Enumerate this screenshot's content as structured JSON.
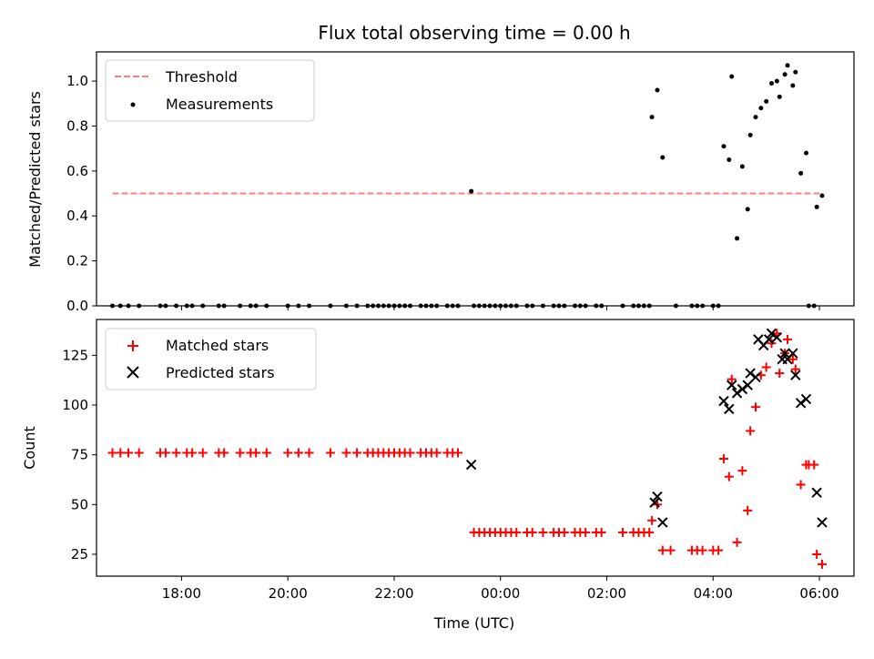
{
  "chart_data": [
    {
      "type": "scatter",
      "title": "Flux total observing time = 0.00 h",
      "xlabel": "",
      "ylabel": "Matched/Predicted stars",
      "xlim": [
        16.4,
        30.65
      ],
      "ylim": [
        0,
        1.13
      ],
      "yticks": [
        "0.0",
        "0.2",
        "0.4",
        "0.6",
        "0.8",
        "1.0"
      ],
      "threshold": {
        "name": "Threshold",
        "y": 0.5,
        "x": [
          16.7,
          30.0
        ],
        "color": "#ff7f7f"
      },
      "legend": {
        "position": "upper-left",
        "entries": [
          "Threshold",
          "Measurements"
        ]
      },
      "series": [
        {
          "name": "Measurements",
          "color": "#000000",
          "points": [
            [
              16.7,
              0
            ],
            [
              16.85,
              0
            ],
            [
              17.0,
              0
            ],
            [
              17.2,
              0
            ],
            [
              17.6,
              0
            ],
            [
              17.7,
              0
            ],
            [
              17.9,
              0
            ],
            [
              18.1,
              0
            ],
            [
              18.2,
              0
            ],
            [
              18.4,
              0
            ],
            [
              18.7,
              0
            ],
            [
              18.8,
              0
            ],
            [
              19.1,
              0
            ],
            [
              19.3,
              0
            ],
            [
              19.4,
              0
            ],
            [
              19.6,
              0
            ],
            [
              20.0,
              0
            ],
            [
              20.2,
              0
            ],
            [
              20.4,
              0
            ],
            [
              20.8,
              0
            ],
            [
              21.1,
              0
            ],
            [
              21.3,
              0
            ],
            [
              21.5,
              0
            ],
            [
              21.6,
              0
            ],
            [
              21.7,
              0
            ],
            [
              21.8,
              0
            ],
            [
              21.9,
              0
            ],
            [
              22.0,
              0
            ],
            [
              22.1,
              0
            ],
            [
              22.2,
              0
            ],
            [
              22.3,
              0
            ],
            [
              22.5,
              0
            ],
            [
              22.6,
              0
            ],
            [
              22.7,
              0
            ],
            [
              22.8,
              0
            ],
            [
              23.0,
              0
            ],
            [
              23.1,
              0
            ],
            [
              23.2,
              0
            ],
            [
              23.45,
              0.51
            ],
            [
              23.5,
              0
            ],
            [
              23.6,
              0
            ],
            [
              23.7,
              0
            ],
            [
              23.8,
              0
            ],
            [
              23.9,
              0
            ],
            [
              24.0,
              0
            ],
            [
              24.1,
              0
            ],
            [
              24.2,
              0
            ],
            [
              24.3,
              0
            ],
            [
              24.5,
              0
            ],
            [
              24.6,
              0
            ],
            [
              24.8,
              0
            ],
            [
              25.0,
              0
            ],
            [
              25.1,
              0
            ],
            [
              25.2,
              0
            ],
            [
              25.4,
              0
            ],
            [
              25.5,
              0
            ],
            [
              25.6,
              0
            ],
            [
              25.8,
              0
            ],
            [
              25.9,
              0
            ],
            [
              26.3,
              0
            ],
            [
              26.5,
              0
            ],
            [
              26.6,
              0
            ],
            [
              26.7,
              0
            ],
            [
              26.8,
              0
            ],
            [
              26.85,
              0.84
            ],
            [
              26.95,
              0.96
            ],
            [
              27.05,
              0.66
            ],
            [
              27.3,
              0
            ],
            [
              27.6,
              0
            ],
            [
              27.7,
              0
            ],
            [
              27.8,
              0
            ],
            [
              28.0,
              0
            ],
            [
              28.1,
              0
            ],
            [
              28.2,
              0.71
            ],
            [
              28.3,
              0.65
            ],
            [
              28.35,
              1.02
            ],
            [
              28.45,
              0.3
            ],
            [
              28.55,
              0.62
            ],
            [
              28.65,
              0.43
            ],
            [
              28.7,
              0.76
            ],
            [
              28.8,
              0.84
            ],
            [
              28.9,
              0.88
            ],
            [
              29.0,
              0.91
            ],
            [
              29.1,
              0.99
            ],
            [
              29.2,
              1.0
            ],
            [
              29.25,
              0.93
            ],
            [
              29.35,
              1.03
            ],
            [
              29.4,
              1.07
            ],
            [
              29.5,
              0.98
            ],
            [
              29.55,
              1.04
            ],
            [
              29.65,
              0.59
            ],
            [
              29.75,
              0.68
            ],
            [
              29.8,
              0
            ],
            [
              29.9,
              0
            ],
            [
              29.95,
              0.44
            ],
            [
              30.05,
              0.49
            ]
          ]
        }
      ]
    },
    {
      "type": "scatter",
      "title": "",
      "xlabel": "Time (UTC)",
      "ylabel": "Count",
      "xlim": [
        16.4,
        30.65
      ],
      "ylim": [
        14,
        143
      ],
      "yticks": [
        "25",
        "50",
        "75",
        "100",
        "125"
      ],
      "xticks": [
        "18:00",
        "20:00",
        "22:00",
        "00:00",
        "02:00",
        "04:00",
        "06:00"
      ],
      "legend": {
        "position": "upper-left",
        "entries": [
          "Matched stars",
          "Predicted stars"
        ]
      },
      "series": [
        {
          "name": "Matched stars",
          "marker": "plus",
          "color": "#ff0000",
          "points": [
            [
              16.7,
              76
            ],
            [
              16.85,
              76
            ],
            [
              17.0,
              76
            ],
            [
              17.2,
              76
            ],
            [
              17.6,
              76
            ],
            [
              17.7,
              76
            ],
            [
              17.9,
              76
            ],
            [
              18.1,
              76
            ],
            [
              18.2,
              76
            ],
            [
              18.4,
              76
            ],
            [
              18.7,
              76
            ],
            [
              18.8,
              76
            ],
            [
              19.1,
              76
            ],
            [
              19.3,
              76
            ],
            [
              19.4,
              76
            ],
            [
              19.6,
              76
            ],
            [
              20.0,
              76
            ],
            [
              20.2,
              76
            ],
            [
              20.4,
              76
            ],
            [
              20.8,
              76
            ],
            [
              21.1,
              76
            ],
            [
              21.3,
              76
            ],
            [
              21.5,
              76
            ],
            [
              21.6,
              76
            ],
            [
              21.7,
              76
            ],
            [
              21.8,
              76
            ],
            [
              21.9,
              76
            ],
            [
              22.0,
              76
            ],
            [
              22.1,
              76
            ],
            [
              22.2,
              76
            ],
            [
              22.3,
              76
            ],
            [
              22.5,
              76
            ],
            [
              22.6,
              76
            ],
            [
              22.7,
              76
            ],
            [
              22.8,
              76
            ],
            [
              23.0,
              76
            ],
            [
              23.1,
              76
            ],
            [
              23.2,
              76
            ],
            [
              23.5,
              36
            ],
            [
              23.6,
              36
            ],
            [
              23.7,
              36
            ],
            [
              23.8,
              36
            ],
            [
              23.9,
              36
            ],
            [
              24.0,
              36
            ],
            [
              24.1,
              36
            ],
            [
              24.2,
              36
            ],
            [
              24.3,
              36
            ],
            [
              24.5,
              36
            ],
            [
              24.6,
              36
            ],
            [
              24.8,
              36
            ],
            [
              25.0,
              36
            ],
            [
              25.1,
              36
            ],
            [
              25.2,
              36
            ],
            [
              25.4,
              36
            ],
            [
              25.5,
              36
            ],
            [
              25.6,
              36
            ],
            [
              25.8,
              36
            ],
            [
              25.9,
              36
            ],
            [
              26.3,
              36
            ],
            [
              26.5,
              36
            ],
            [
              26.6,
              36
            ],
            [
              26.7,
              36
            ],
            [
              26.8,
              36
            ],
            [
              26.85,
              42
            ],
            [
              26.95,
              50
            ],
            [
              27.05,
              27
            ],
            [
              27.2,
              27
            ],
            [
              27.6,
              27
            ],
            [
              27.7,
              27
            ],
            [
              27.8,
              27
            ],
            [
              28.0,
              27
            ],
            [
              28.1,
              27
            ],
            [
              28.2,
              73
            ],
            [
              28.3,
              64
            ],
            [
              28.35,
              113
            ],
            [
              28.45,
              31
            ],
            [
              28.55,
              67
            ],
            [
              28.65,
              47
            ],
            [
              28.7,
              87
            ],
            [
              28.8,
              99
            ],
            [
              28.9,
              115
            ],
            [
              29.0,
              119
            ],
            [
              29.1,
              131
            ],
            [
              29.2,
              136
            ],
            [
              29.25,
              116
            ],
            [
              29.35,
              126
            ],
            [
              29.4,
              133
            ],
            [
              29.5,
              123
            ],
            [
              29.55,
              118
            ],
            [
              29.65,
              60
            ],
            [
              29.75,
              70
            ],
            [
              29.8,
              70
            ],
            [
              29.9,
              70
            ],
            [
              29.95,
              25
            ],
            [
              30.05,
              20
            ]
          ]
        },
        {
          "name": "Predicted stars",
          "marker": "x",
          "color": "#000000",
          "points": [
            [
              23.45,
              70
            ],
            [
              26.9,
              51
            ],
            [
              26.95,
              54
            ],
            [
              27.05,
              41
            ],
            [
              28.2,
              102
            ],
            [
              28.3,
              98
            ],
            [
              28.35,
              110
            ],
            [
              28.45,
              106
            ],
            [
              28.55,
              108
            ],
            [
              28.65,
              110
            ],
            [
              28.7,
              116
            ],
            [
              28.8,
              114
            ],
            [
              28.85,
              133
            ],
            [
              28.95,
              130
            ],
            [
              29.05,
              133
            ],
            [
              29.1,
              136
            ],
            [
              29.2,
              134
            ],
            [
              29.3,
              123
            ],
            [
              29.35,
              126
            ],
            [
              29.4,
              123
            ],
            [
              29.5,
              126
            ],
            [
              29.55,
              115
            ],
            [
              29.65,
              101
            ],
            [
              29.75,
              103
            ],
            [
              29.95,
              56
            ],
            [
              30.05,
              41
            ]
          ]
        }
      ]
    }
  ]
}
